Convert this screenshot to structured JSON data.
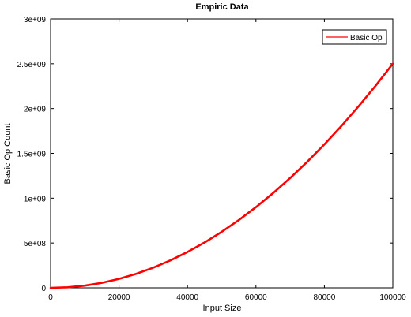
{
  "chart_data": {
    "type": "line",
    "title": "Empiric Data",
    "xlabel": "Input Size",
    "ylabel": "Basic Op Count",
    "xlim": [
      0,
      100000
    ],
    "ylim": [
      0,
      3000000000
    ],
    "x_ticks": [
      0,
      20000,
      40000,
      60000,
      80000,
      100000
    ],
    "x_tick_labels": [
      "0",
      "20000",
      "40000",
      "60000",
      "80000",
      "100000"
    ],
    "y_ticks": [
      0,
      500000000,
      1000000000,
      1500000000,
      2000000000,
      2500000000,
      3000000000
    ],
    "y_tick_labels": [
      "0",
      "5e+08",
      "1e+09",
      "1.5e+09",
      "2e+09",
      "2.5e+09",
      "3e+09"
    ],
    "grid": false,
    "legend_position": "top-right",
    "series": [
      {
        "name": "Basic Op",
        "color": "#ff0000",
        "x": [
          0,
          5000,
          10000,
          15000,
          20000,
          25000,
          30000,
          35000,
          40000,
          45000,
          50000,
          55000,
          60000,
          65000,
          70000,
          75000,
          80000,
          85000,
          90000,
          95000,
          100000
        ],
        "y": [
          0,
          6250000,
          25000000,
          56250000,
          100000000,
          156250000,
          225000000,
          306250000,
          400000000,
          506250000,
          625000000,
          756250000,
          900000000,
          1056250000,
          1225000000,
          1406250000,
          1600000000,
          1806250000,
          2025000000,
          2256250000,
          2500000000
        ]
      }
    ]
  }
}
